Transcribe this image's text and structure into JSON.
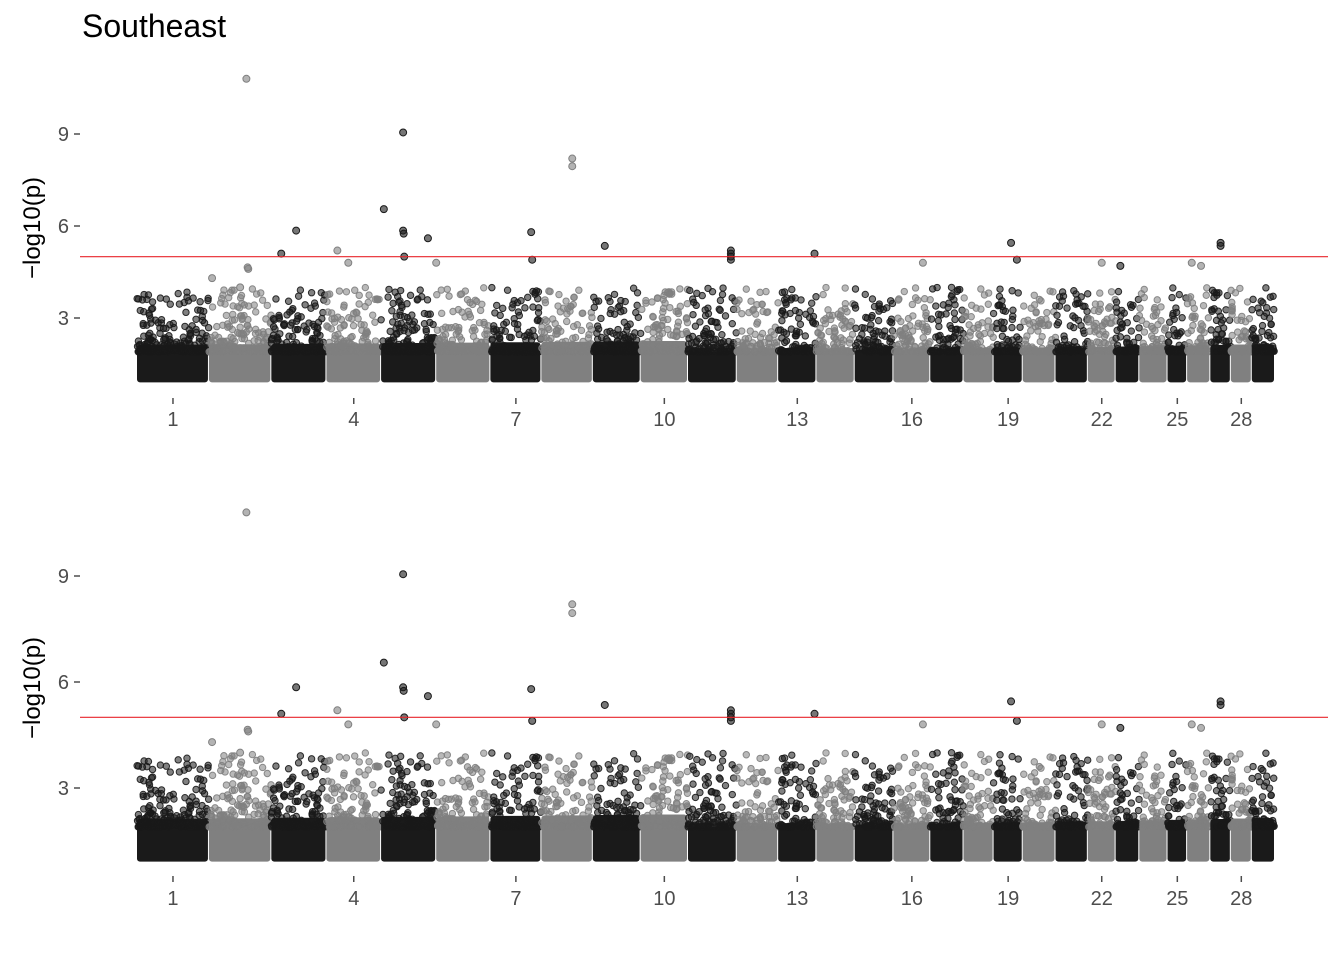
{
  "chart_data": {
    "type": "scatter",
    "title": "Southeast",
    "ylabel": "−log10(p)",
    "threshold": 5,
    "colors": {
      "dark": "#1a1a1a",
      "light": "#808080",
      "threshold": "#e8262b",
      "axis": "#4d4d4d"
    },
    "ylim": [
      1,
      11
    ],
    "yticks": [
      3,
      6,
      9
    ],
    "xticks": [
      1,
      4,
      7,
      10,
      13,
      16,
      19,
      22,
      25,
      28
    ],
    "chromosomes": [
      {
        "chr": 1,
        "length": 158
      },
      {
        "chr": 2,
        "length": 137
      },
      {
        "chr": 3,
        "length": 121
      },
      {
        "chr": 4,
        "length": 120
      },
      {
        "chr": 5,
        "length": 121
      },
      {
        "chr": 6,
        "length": 119
      },
      {
        "chr": 7,
        "length": 112
      },
      {
        "chr": 8,
        "length": 113
      },
      {
        "chr": 9,
        "length": 105
      },
      {
        "chr": 10,
        "length": 104
      },
      {
        "chr": 11,
        "length": 107
      },
      {
        "chr": 12,
        "length": 91
      },
      {
        "chr": 13,
        "length": 84
      },
      {
        "chr": 14,
        "length": 84
      },
      {
        "chr": 15,
        "length": 85
      },
      {
        "chr": 16,
        "length": 81
      },
      {
        "chr": 17,
        "length": 73
      },
      {
        "chr": 18,
        "length": 66
      },
      {
        "chr": 19,
        "length": 64
      },
      {
        "chr": 20,
        "length": 72
      },
      {
        "chr": 21,
        "length": 71
      },
      {
        "chr": 22,
        "length": 61
      },
      {
        "chr": 23,
        "length": 52
      },
      {
        "chr": 24,
        "length": 62
      },
      {
        "chr": 25,
        "length": 43
      },
      {
        "chr": 26,
        "length": 51
      },
      {
        "chr": 27,
        "length": 45
      },
      {
        "chr": 28,
        "length": 46
      },
      {
        "chr": 29,
        "length": 51
      }
    ],
    "notable_points": [
      {
        "chr": 2,
        "pos": 0.6,
        "logp": 10.8
      },
      {
        "chr": 2,
        "pos": 0.62,
        "logp": 4.65
      },
      {
        "chr": 2,
        "pos": 0.63,
        "logp": 4.6
      },
      {
        "chr": 2,
        "pos": 0.5,
        "logp": 4.0
      },
      {
        "chr": 2,
        "pos": 0.05,
        "logp": 4.3
      },
      {
        "chr": 3,
        "pos": 0.18,
        "logp": 5.1
      },
      {
        "chr": 3,
        "pos": 0.45,
        "logp": 5.85
      },
      {
        "chr": 4,
        "pos": 0.2,
        "logp": 5.2
      },
      {
        "chr": 4,
        "pos": 0.4,
        "logp": 4.8
      },
      {
        "chr": 5,
        "pos": 0.05,
        "logp": 6.55
      },
      {
        "chr": 5,
        "pos": 0.4,
        "logp": 9.05
      },
      {
        "chr": 5,
        "pos": 0.4,
        "logp": 5.85
      },
      {
        "chr": 5,
        "pos": 0.41,
        "logp": 5.75
      },
      {
        "chr": 5,
        "pos": 0.42,
        "logp": 5.0
      },
      {
        "chr": 5,
        "pos": 0.85,
        "logp": 5.6
      },
      {
        "chr": 6,
        "pos": 0.0,
        "logp": 4.8
      },
      {
        "chr": 7,
        "pos": 0.8,
        "logp": 5.8
      },
      {
        "chr": 7,
        "pos": 0.82,
        "logp": 4.9
      },
      {
        "chr": 8,
        "pos": 0.6,
        "logp": 8.2
      },
      {
        "chr": 8,
        "pos": 0.6,
        "logp": 7.95
      },
      {
        "chr": 9,
        "pos": 0.25,
        "logp": 5.35
      },
      {
        "chr": 11,
        "pos": 0.88,
        "logp": 5.2
      },
      {
        "chr": 11,
        "pos": 0.88,
        "logp": 5.1
      },
      {
        "chr": 11,
        "pos": 0.88,
        "logp": 5.0
      },
      {
        "chr": 11,
        "pos": 0.88,
        "logp": 4.9
      },
      {
        "chr": 13,
        "pos": 0.95,
        "logp": 5.1
      },
      {
        "chr": 16,
        "pos": 0.8,
        "logp": 4.8
      },
      {
        "chr": 19,
        "pos": 0.6,
        "logp": 5.45
      },
      {
        "chr": 19,
        "pos": 0.8,
        "logp": 4.9
      },
      {
        "chr": 22,
        "pos": 0.5,
        "logp": 4.8
      },
      {
        "chr": 23,
        "pos": 0.2,
        "logp": 4.7
      },
      {
        "chr": 26,
        "pos": 0.2,
        "logp": 4.8
      },
      {
        "chr": 26,
        "pos": 0.6,
        "logp": 4.7
      },
      {
        "chr": 27,
        "pos": 0.5,
        "logp": 5.45
      },
      {
        "chr": 27,
        "pos": 0.5,
        "logp": 5.35
      }
    ]
  }
}
